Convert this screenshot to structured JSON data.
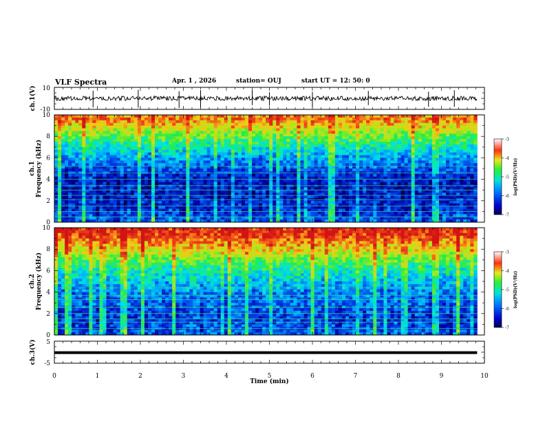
{
  "header": {
    "title": "VLF Spectra",
    "date": "Apr. 1  , 2026",
    "station": "station= OUJ",
    "start_ut": "start  UT  =   12: 50: 0"
  },
  "panels": {
    "ch1_label": "ch.1(V)",
    "ch1_top_tick": "10",
    "ch1_bottom_tick": "-10",
    "spec1_ylabel": "ch.1",
    "spec1_ylabel2": "Frequency  (kHz)",
    "spec2_ylabel": "ch.2",
    "spec2_ylabel2": "Frequency  (kHz)",
    "ch3_label": "ch.3(V)",
    "ch3_top_tick": "5",
    "ch3_bottom_tick": "-5",
    "colorbar_label": "log(PSD)(V²/Hz)"
  },
  "colors": {
    "background": "#ffffff",
    "spectrogram_high": "#e8281e",
    "spectrogram_mid": "#2ee85a",
    "spectrogram_low": "#0a1e78"
  },
  "chart_data": [
    {
      "type": "line",
      "name": "ch1-waveform",
      "title": "VLF Spectra",
      "xlabel": "Time  (min)",
      "ylabel": "ch.1(V)",
      "xlim": [
        0,
        10
      ],
      "ylim": [
        -10,
        10
      ],
      "baseline_value": 0,
      "series": [
        {
          "name": "ch.1",
          "x_range": [
            0,
            9.83
          ],
          "baseline": 0,
          "noise_amplitude": 2,
          "spike_times": [
            0.9,
            1.95,
            2.9,
            3.4,
            4.6,
            5.0,
            6.0,
            7.3,
            8.7,
            9.3
          ]
        }
      ]
    },
    {
      "type": "heatmap",
      "name": "ch1-spectrogram",
      "xlabel": "Time  (min)",
      "ylabel": "Frequency  (kHz)",
      "xlim": [
        0,
        10
      ],
      "ylim": [
        0,
        10
      ],
      "x_data_extent": [
        0,
        9.83
      ],
      "y_ticks": [
        "0",
        "2",
        "4",
        "6",
        "8",
        "10"
      ],
      "colorbar": {
        "label": "log(PSD)(V²/Hz)",
        "ticks": [
          "-3",
          "-4",
          "-5",
          "-6",
          "-7"
        ],
        "range": [
          -7,
          -3
        ]
      },
      "dominant_level_by_freq": [
        {
          "freq_khz": 9.5,
          "log_psd": -3.6
        },
        {
          "freq_khz": 8.0,
          "log_psd": -4.6
        },
        {
          "freq_khz": 6.5,
          "log_psd": -5.4
        },
        {
          "freq_khz": 4.0,
          "log_psd": -6.4
        },
        {
          "freq_khz": 1.5,
          "log_psd": -6.3
        },
        {
          "freq_khz": 0.3,
          "log_psd": -6.0
        }
      ],
      "tone_lines_khz": [
        0.5,
        1.0,
        1.5,
        2.1,
        2.5,
        3.0,
        3.4,
        4.0,
        4.6,
        5.2
      ]
    },
    {
      "type": "heatmap",
      "name": "ch2-spectrogram",
      "xlabel": "Time  (min)",
      "ylabel": "Frequency  (kHz)",
      "xlim": [
        0,
        10
      ],
      "ylim": [
        0,
        10
      ],
      "x_data_extent": [
        0,
        9.83
      ],
      "y_ticks": [
        "0",
        "2",
        "4",
        "6",
        "8",
        "10"
      ],
      "colorbar": {
        "label": "log(PSD)(V²/Hz)",
        "ticks": [
          "-3",
          "-4",
          "-5",
          "-6",
          "-7"
        ],
        "range": [
          -7,
          -3
        ]
      },
      "dominant_level_by_freq": [
        {
          "freq_khz": 9.5,
          "log_psd": -3.2
        },
        {
          "freq_khz": 8.0,
          "log_psd": -4.0
        },
        {
          "freq_khz": 6.5,
          "log_psd": -4.9
        },
        {
          "freq_khz": 4.0,
          "log_psd": -5.8
        },
        {
          "freq_khz": 1.5,
          "log_psd": -6.2
        },
        {
          "freq_khz": 0.3,
          "log_psd": -6.0
        }
      ],
      "tone_lines_khz": [
        0.6,
        1.2,
        1.5,
        2.0,
        2.6,
        3.3,
        3.7,
        4.4
      ]
    },
    {
      "type": "line",
      "name": "ch3-waveform",
      "xlabel": "Time  (min)",
      "ylabel": "ch.3(V)",
      "xlim": [
        0,
        10
      ],
      "ylim": [
        -5,
        5
      ],
      "x_ticks": [
        "0",
        "1",
        "2",
        "3",
        "4",
        "5",
        "6",
        "7",
        "8",
        "9",
        "10"
      ],
      "series": [
        {
          "name": "ch.3",
          "x_range": [
            0,
            9.83
          ],
          "value": -0.2
        }
      ]
    }
  ]
}
